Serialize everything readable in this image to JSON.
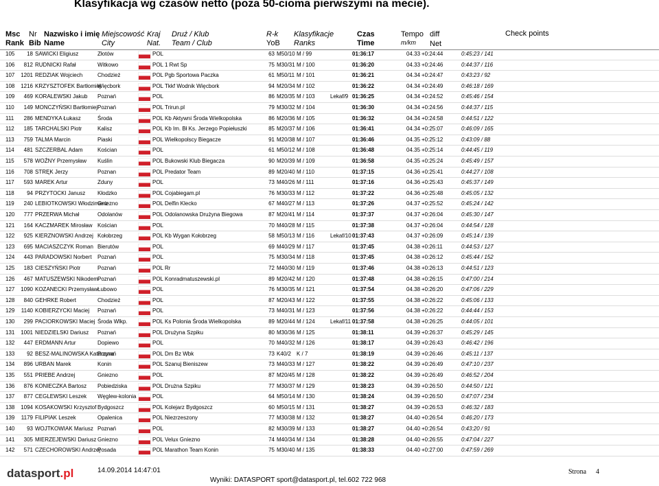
{
  "header": {
    "title": "Klasyfikacja wg czasów netto (poza 50-cioma pierwszymi na mecie)."
  },
  "table": {
    "columns": [
      [
        "Msc",
        "Rank"
      ],
      [
        "Nr",
        "Bib"
      ],
      [
        "Nazwisko i imię",
        "Name"
      ],
      [
        "Miejscowość",
        "City"
      ],
      [
        "Kraj",
        "Nat."
      ],
      [
        "Druż / Klub",
        "Team / Club"
      ],
      [
        "R-k",
        "YoB"
      ],
      [
        "Klasyfikacje",
        "Ranks"
      ],
      [
        "Czas",
        "Time"
      ],
      [
        "Tempo",
        "m/km"
      ],
      [
        "diff"
      ],
      [
        "Net"
      ],
      [
        "Check points"
      ]
    ],
    "rows": [
      [
        105,
        18,
        "SAWICKI Eligiusz",
        "Złotów",
        "POL",
        null,
        63,
        "M50/10",
        "M / 99",
        null,
        "01:36:17",
        "04.33",
        "+0:24:44",
        "0:45:23 / 141"
      ],
      [
        106,
        812,
        "RUDNICKI Rafał",
        "Witkowo",
        "POL",
        "1 Rwt Sp",
        75,
        "M30/31",
        "M / 100",
        null,
        "01:36:20",
        "04.33",
        "+0:24:46",
        "0:44:37 / 116"
      ],
      [
        107,
        1201,
        "REDZIAK Wojciech",
        "Chodzież",
        "POL",
        "Pgb Sportowa Paczka",
        61,
        "M50/11",
        "M / 101",
        null,
        "01:36:21",
        "04.34",
        "+0:24:47",
        "0:43:23 / 92"
      ],
      [
        108,
        1216,
        "KRZYSZTOFEK Bartłomiej",
        "Więcbork",
        "POL",
        "Tkkf Wodnik Więcbork",
        94,
        "M20/34",
        "M / 102",
        null,
        "01:36:22",
        "04.34",
        "+0:24:49",
        "0:46:18 / 169"
      ],
      [
        109,
        469,
        "KORALEWSKI Jakub",
        "Poznań",
        "POL",
        null,
        86,
        "M20/35",
        "M / 103",
        "Lekaf/9",
        "01:36:25",
        "04.34",
        "+0:24:52",
        "0:45:46 / 154"
      ],
      [
        110,
        149,
        "MONCZYŃSKI Bartłomiej",
        "Poznań",
        "POL",
        "Trirun.pl",
        79,
        "M30/32",
        "M / 104",
        null,
        "01:36:30",
        "04.34",
        "+0:24:56",
        "0:44:37 / 115"
      ],
      [
        111,
        286,
        "MENDYKA Łukasz",
        "Środa",
        "POL",
        "Kb Aktywni Środa Wielkopolska",
        86,
        "M20/36",
        "M / 105",
        null,
        "01:36:32",
        "04.34",
        "+0:24:58",
        "0:44:51 / 122"
      ],
      [
        112,
        185,
        "TARCHALSKI Piotr",
        "Kalisz",
        "POL",
        "Kb Im. Bł Ks. Jerzego Popiełuszki",
        85,
        "M20/37",
        "M / 106",
        null,
        "01:36:41",
        "04.34",
        "+0:25:07",
        "0:46:09 / 165"
      ],
      [
        113,
        759,
        "TALMA Marcin",
        "Piaski",
        "POL",
        "Wielkopolscy Biegacze",
        91,
        "M20/38",
        "M / 107",
        null,
        "01:36:46",
        "04.35",
        "+0:25:12",
        "0:43:09 / 88"
      ],
      [
        114,
        481,
        "SZCZERBAL Adam",
        "Kościan",
        "POL",
        null,
        61,
        "M50/12",
        "M / 108",
        null,
        "01:36:48",
        "04.35",
        "+0:25:14",
        "0:44:45 / 119"
      ],
      [
        115,
        578,
        "WOŹNY Przemysław",
        "Kuślin",
        "POL",
        "Bukowski Klub Biegacza",
        90,
        "M20/39",
        "M / 109",
        null,
        "01:36:58",
        "04.35",
        "+0:25:24",
        "0:45:49 / 157"
      ],
      [
        116,
        708,
        "STRĘK Jerzy",
        "Poznan",
        "POL",
        "Predator Team",
        89,
        "M20/40",
        "M / 110",
        null,
        "01:37:15",
        "04.36",
        "+0:25:41",
        "0:44:27 / 108"
      ],
      [
        117,
        593,
        "MAREK Artur",
        "Zduny",
        "POL",
        null,
        73,
        "M40/26",
        "M / 111",
        null,
        "01:37:16",
        "04.36",
        "+0:25:43",
        "0:45:37 / 149"
      ],
      [
        118,
        94,
        "PRZYTOCKI Janusz",
        "Kłodzko",
        "POL",
        "Cojabiegam.pl",
        76,
        "M30/33",
        "M / 112",
        null,
        "01:37:22",
        "04.36",
        "+0:25:48",
        "0:45:05 / 132"
      ],
      [
        119,
        240,
        "LEBIOTKOWSKI Włodzimierz",
        "Gniezno",
        "POL",
        "Delfin Klecko",
        67,
        "M40/27",
        "M / 113",
        null,
        "01:37:26",
        "04.37",
        "+0:25:52",
        "0:45:24 / 142"
      ],
      [
        120,
        777,
        "PRZERWA Michał",
        "Odolanów",
        "POL",
        "Odolanowska Drużyna Biegowa",
        87,
        "M20/41",
        "M / 114",
        null,
        "01:37:37",
        "04.37",
        "+0:26:04",
        "0:45:30 / 147"
      ],
      [
        121,
        164,
        "KACZMAREK Mirosław",
        "Kościan",
        "POL",
        null,
        70,
        "M40/28",
        "M / 115",
        null,
        "01:37:38",
        "04.37",
        "+0:26:04",
        "0:44:54 / 128"
      ],
      [
        122,
        925,
        "KIERZNOWSKI Andrzej",
        "Kołobrzeg",
        "POL",
        "Kb Wygan Kołobrzeg",
        58,
        "M50/13",
        "M / 116",
        "Lekaf/10",
        "01:37:43",
        "04.37",
        "+0:26:09",
        "0:45:14 / 139"
      ],
      [
        123,
        695,
        "MACIASZCZYK Roman",
        "Bierutów",
        "POL",
        null,
        69,
        "M40/29",
        "M / 117",
        null,
        "01:37:45",
        "04.38",
        "+0:26:11",
        "0:44:53 / 127"
      ],
      [
        124,
        443,
        "PARADOWSKI Norbert",
        "Poznań",
        "POL",
        null,
        75,
        "M30/34",
        "M / 118",
        null,
        "01:37:45",
        "04.38",
        "+0:26:12",
        "0:45:44 / 152"
      ],
      [
        125,
        183,
        "CIESZYŃSKI Piotr",
        "Poznań",
        "POL",
        "Rr",
        72,
        "M40/30",
        "M / 119",
        null,
        "01:37:46",
        "04.38",
        "+0:26:13",
        "0:44:51 / 123"
      ],
      [
        126,
        467,
        "MATUSZEWSKI Nikodem",
        "Poznań",
        "POL",
        "Konradmatuszewski.pl",
        89,
        "M20/42",
        "M / 120",
        null,
        "01:37:48",
        "04.38",
        "+0:26:15",
        "0:47:00 / 214"
      ],
      [
        127,
        1090,
        "KOZANECKI Przemysław",
        "Łubowo",
        "POL",
        null,
        76,
        "M30/35",
        "M / 121",
        null,
        "01:37:54",
        "04.38",
        "+0:26:20",
        "0:47:06 / 229"
      ],
      [
        128,
        840,
        "GEHRKE Robert",
        "Chodzież",
        "POL",
        null,
        87,
        "M20/43",
        "M / 122",
        null,
        "01:37:55",
        "04.38",
        "+0:26:22",
        "0:45:06 / 133"
      ],
      [
        129,
        1140,
        "KOBIERZYCKI Maciej",
        "Poznań",
        "POL",
        null,
        73,
        "M40/31",
        "M / 123",
        null,
        "01:37:56",
        "04.38",
        "+0:26:22",
        "0:44:44 / 153"
      ],
      [
        130,
        299,
        "PACIORKOWSKI Maciej",
        "Środa Wlkp.",
        "POL",
        "Ks Polonia Środa Wielkopolska",
        89,
        "M20/44",
        "M / 124",
        "Lekaf/11",
        "01:37:58",
        "04.38",
        "+0:26:25",
        "0:44:05 / 101"
      ],
      [
        131,
        1001,
        "NIEDZIELSKI Dariusz",
        "Poznań",
        "POL",
        "Drużyna Szpiku",
        80,
        "M30/36",
        "M / 125",
        null,
        "01:38:11",
        "04.39",
        "+0:26:37",
        "0:45:29 / 145"
      ],
      [
        132,
        447,
        "ERDMANN Artur",
        "Dopiewo",
        "POL",
        null,
        70,
        "M40/32",
        "M / 126",
        null,
        "01:38:17",
        "04.39",
        "+0:26:43",
        "0:46:42 / 196"
      ],
      [
        133,
        92,
        "BESZ-MALINOWSKA Katarzyna",
        "Poznań",
        "POL",
        "Dm Bz Wbk",
        73,
        "K40/2",
        "K / 7",
        null,
        "01:38:19",
        "04.39",
        "+0:26:46",
        "0:45:11 / 137"
      ],
      [
        134,
        896,
        "URBAN Marek",
        "Konin",
        "POL",
        "Szanuj Bieniszew",
        73,
        "M40/33",
        "M / 127",
        null,
        "01:38:22",
        "04.39",
        "+0:26:49",
        "0:47:10 / 237"
      ],
      [
        135,
        551,
        "PRIEBE Andrzej",
        "Gniezno",
        "POL",
        null,
        87,
        "M20/45",
        "M / 128",
        null,
        "01:38:22",
        "04.39",
        "+0:26:49",
        "0:46:52 / 204"
      ],
      [
        136,
        876,
        "KONIECZKA Bartosz",
        "Pobiedziska",
        "POL",
        "Drużna Szpiku",
        77,
        "M30/37",
        "M / 129",
        null,
        "01:38:23",
        "04.39",
        "+0:26:50",
        "0:44:50 / 121"
      ],
      [
        137,
        877,
        "CEGLEWSKI Leszek",
        "Węglew-kolonia",
        "POL",
        null,
        64,
        "M50/14",
        "M / 130",
        null,
        "01:38:24",
        "04.39",
        "+0:26:50",
        "0:47:07 / 234"
      ],
      [
        138,
        1094,
        "KOSAKOWSKI Krzysztof",
        "Bydgoszcz",
        "POL",
        "Kolejarz Bydgoszcz",
        60,
        "M50/15",
        "M / 131",
        null,
        "01:38:27",
        "04.39",
        "+0:26:53",
        "0:46:32 / 183"
      ],
      [
        139,
        1179,
        "FILIPIAK Leszek",
        "Opalenica",
        "POL",
        "Niezrzeszony",
        77,
        "M30/38",
        "M / 132",
        null,
        "01:38:27",
        "04.40",
        "+0:26:54",
        "0:46:20 / 173"
      ],
      [
        140,
        93,
        "WOJTKOWIAK Mariusz",
        "Poznań",
        "POL",
        null,
        82,
        "M30/39",
        "M / 133",
        null,
        "01:38:27",
        "04.40",
        "+0:26:54",
        "0:43:20 / 91"
      ],
      [
        141,
        305,
        "MIERZEJEWSKI Dariusz",
        "Gniezno",
        "POL",
        "Velux Gniezno",
        74,
        "M40/34",
        "M / 134",
        null,
        "01:38:28",
        "04.40",
        "+0:26:55",
        "0:47:04 / 227"
      ],
      [
        142,
        571,
        "CZECHOROWSKI Andrzej",
        "Posada",
        "POL",
        "Marathon Team Konin",
        75,
        "M30/40",
        "M / 135",
        null,
        "01:38:33",
        "04.40",
        "+0:27:00",
        "0:47:59 / 269"
      ]
    ]
  },
  "footer": {
    "logo": [
      "datasport",
      ".pl"
    ],
    "date": "14.09.2014 14:47:01",
    "contact": "Wyniki: DATASPORT sport@datasport.pl, tel.602 722 968",
    "page_label": "Strona",
    "page_number": 4
  }
}
